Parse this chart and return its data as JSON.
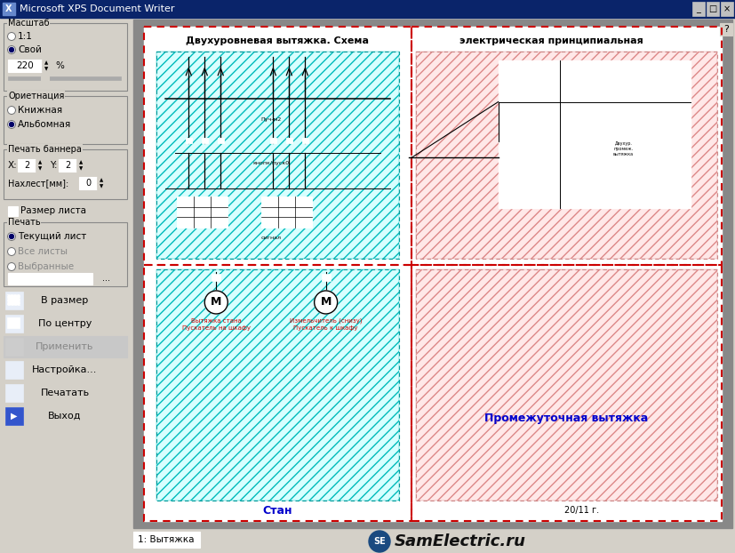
{
  "window_title": "Microsoft XPS Document Writer",
  "window_bg": "#d4d0c8",
  "title_bar_bg": "#0a246a",
  "title_bar_text": "#ffffff",
  "canvas_bg": "#808080",
  "panel_bg": "#d4d0c8",
  "buttons": [
    "В размер",
    "По центру",
    "Применить",
    "Настройка...",
    "Печатать",
    "Выход"
  ],
  "bottom_tab": "1: Вытяжка",
  "bottom_logo": "SamElectric.ru",
  "cell_label_bl": "Стан",
  "cell_label_br": "Промежуточная вытяжка",
  "cell_label_color": "#0000cc",
  "red_dashed_color": "#cc0000",
  "cyan_hatch_color": "#00bbbb",
  "pink_hatch_color": "#dd8888",
  "hatch_bg_cyan": "#d8ffff",
  "hatch_bg_pink": "#ffe8e8",
  "date_text": "20/11 г.",
  "title_left": "Двухуровневая вытяжка. Схема",
  "title_right": "электрическая принципиальная"
}
